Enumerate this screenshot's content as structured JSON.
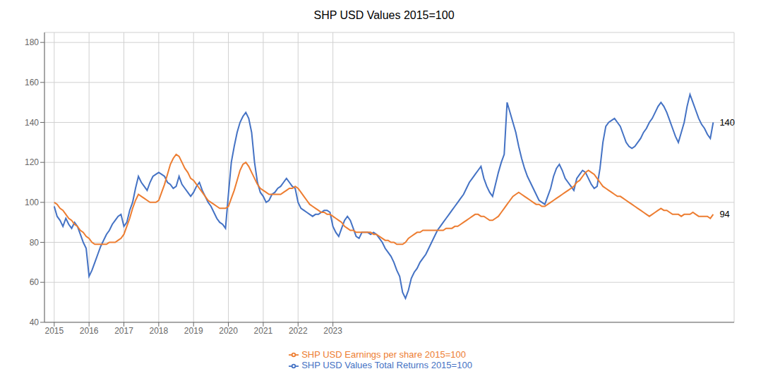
{
  "chart_data": {
    "type": "line",
    "title": "SHP USD Values 2015=100",
    "x": [
      2015,
      2015.0833333333333,
      2015.1666666666667,
      2015.25,
      2015.3333333333333,
      2015.4166666666667,
      2015.5,
      2015.5833333333333,
      2015.6666666666667,
      2015.75,
      2015.8333333333333,
      2015.9166666666667,
      2016,
      2016.0833333333333,
      2016.1666666666667,
      2016.25,
      2016.3333333333333,
      2016.4166666666667,
      2016.5,
      2016.5833333333333,
      2016.6666666666667,
      2016.75,
      2016.8333333333333,
      2016.9166666666667,
      2017,
      2017.0833333333333,
      2017.1666666666667,
      2017.25,
      2017.3333333333333,
      2017.4166666666667,
      2017.5,
      2017.5833333333333,
      2017.6666666666667,
      2017.75,
      2017.8333333333333,
      2017.9166666666667,
      2018,
      2018.0833333333333,
      2018.1666666666667,
      2018.25,
      2018.3333333333333,
      2018.4166666666667,
      2018.5,
      2018.5833333333333,
      2018.6666666666667,
      2018.75,
      2018.8333333333333,
      2018.9166666666667,
      2019,
      2019.0833333333333,
      2019.1666666666667,
      2019.25,
      2019.3333333333333,
      2019.4166666666667,
      2019.5,
      2019.5833333333333,
      2019.6666666666667,
      2019.75,
      2019.8333333333333,
      2019.9166666666667,
      2020,
      2020.0833333333333,
      2020.1666666666667,
      2020.25,
      2020.3333333333333,
      2020.4166666666667,
      2020.5,
      2020.5833333333333,
      2020.6666666666667,
      2020.75,
      2020.8333333333333,
      2020.9166666666667,
      2021,
      2021.0833333333333,
      2021.1666666666667,
      2021.25,
      2021.3333333333333,
      2021.4166666666667,
      2021.5,
      2021.5833333333333,
      2021.6666666666667,
      2021.75,
      2021.8333333333333,
      2021.9166666666667,
      2022,
      2022.0833333333333,
      2022.1666666666667,
      2022.25,
      2022.3333333333333,
      2022.4166666666667,
      2022.5,
      2022.5833333333333,
      2022.6666666666667,
      2022.75,
      2022.8333333333333,
      2022.9166666666667,
      2023,
      2023.0833333333333,
      2023.1666666666667,
      2023.25,
      2023.3333333333333,
      2023.4166666666667,
      2023.5,
      2023.5833333333333,
      2023.6666666666667,
      2023.75,
      2023.8333333333333,
      2023.9166666666667,
      2024,
      2024.0833333333333,
      2024.1666666666667,
      2024.25,
      2024.3333333333333,
      2024.4166666666667,
      2024.5,
      2024.5833333333333,
      2024.6666666666667,
      2024.75,
      2024.8333333333333,
      2024.9166666666667,
      2025,
      2025.0833333333333,
      2025.1666666666667,
      2025.25,
      2025.3333333333333,
      2025.4166666666667,
      2025.5,
      2025.5833333333333,
      2025.6666666666667,
      2025.75,
      2025.8333333333333,
      2025.9166666666667,
      2026,
      2026.0833333333333,
      2026.1666666666667,
      2026.25,
      2026.3333333333333,
      2026.4166666666667,
      2026.5,
      2026.5833333333333,
      2026.6666666666667,
      2026.75,
      2026.8333333333333,
      2026.9166666666667,
      2027,
      2027.0833333333333,
      2027.1666666666667,
      2027.25,
      2027.3333333333333,
      2027.4166666666667,
      2027.5,
      2027.5833333333333,
      2027.6666666666667,
      2027.75,
      2027.8333333333333,
      2027.9166666666667,
      2028,
      2028.0833333333333,
      2028.1666666666667,
      2028.25,
      2028.3333333333333,
      2028.4166666666667,
      2028.5,
      2028.5833333333333,
      2028.6666666666667,
      2028.75,
      2028.8333333333333,
      2028.9166666666667,
      2029,
      2029.0833333333333,
      2029.1666666666667,
      2029.25,
      2029.3333333333333,
      2029.4166666666667,
      2029.5,
      2029.5833333333333,
      2029.6666666666667,
      2029.75,
      2029.8333333333333,
      2029.9166666666667,
      2030,
      2030.0833333333333,
      2030.1666666666667,
      2030.25,
      2030.3333333333333,
      2030.4166666666667,
      2030.5,
      2030.5833333333333,
      2030.6666666666667,
      2030.75,
      2030.8333333333333,
      2030.9166666666667,
      2031,
      2031.0833333333333,
      2031.1666666666667,
      2031.25,
      2031.3333333333333,
      2031.4166666666667,
      2031.5,
      2031.5833333333333,
      2031.6666666666667,
      2031.75,
      2031.8333333333333,
      2031.9166666666667,
      2032,
      2032.0833333333333,
      2032.1666666666667,
      2032.25,
      2032.3333333333333,
      2032.4166666666667,
      2032.5,
      2032.5833333333333,
      2032.6666666666667,
      2032.75,
      2032.8333333333333,
      2032.9166666666667,
      2033,
      2033.0833333333333,
      2033.1666666666667,
      2033.25,
      2033.3333333333333,
      2033.4166666666667,
      2033.5,
      2033.5833333333333,
      2033.6666666666667,
      2033.75,
      2033.8333333333333,
      2033.9166666666667
    ],
    "series": [
      {
        "name": "SHP USD Values Total Returns 2015=100",
        "color": "#4472C4",
        "values": [
          98,
          93,
          91,
          88,
          92,
          89,
          87,
          90,
          88,
          84,
          80,
          77,
          63,
          66,
          70,
          74,
          78,
          81,
          84,
          86,
          89,
          91,
          93,
          94,
          88,
          90,
          96,
          100,
          107,
          113,
          110,
          108,
          106,
          110,
          113,
          114,
          115,
          114,
          113,
          110,
          109,
          107,
          108,
          113,
          109,
          107,
          105,
          103,
          105,
          108,
          110,
          106,
          103,
          100,
          98,
          95,
          92,
          90,
          89,
          87,
          104,
          120,
          128,
          135,
          140,
          143,
          145,
          142,
          135,
          120,
          110,
          105,
          103,
          100,
          101,
          104,
          105,
          107,
          108,
          110,
          112,
          110,
          108,
          107,
          100,
          97,
          96,
          95,
          94,
          93,
          94,
          94,
          95,
          96,
          96,
          95,
          88,
          85,
          83,
          87,
          91,
          93,
          91,
          87,
          83,
          82,
          85,
          85,
          85,
          84,
          85,
          84,
          82,
          80,
          77,
          75,
          73,
          70,
          66,
          63,
          55,
          52,
          56,
          62,
          65,
          67,
          70,
          72,
          74,
          77,
          80,
          83,
          86,
          88,
          90,
          92,
          94,
          96,
          98,
          100,
          102,
          104,
          107,
          110,
          112,
          114,
          116,
          118,
          112,
          108,
          105,
          103,
          109,
          115,
          120,
          124,
          150,
          145,
          140,
          135,
          128,
          122,
          117,
          113,
          110,
          107,
          104,
          101,
          100,
          99,
          103,
          107,
          113,
          117,
          119,
          116,
          112,
          110,
          108,
          106,
          112,
          114,
          116,
          115,
          112,
          109,
          107,
          108,
          117,
          130,
          138,
          140,
          141,
          142,
          140,
          138,
          134,
          130,
          128,
          127,
          128,
          130,
          132,
          135,
          137,
          140,
          142,
          145,
          148,
          150,
          148,
          145,
          141,
          137,
          133,
          130,
          135,
          140,
          148,
          154,
          150,
          146,
          142,
          139,
          137,
          134,
          132,
          140
        ]
      },
      {
        "name": "SHP USD Earnings per share 2015=100",
        "color": "#ED7D31",
        "values": [
          100,
          99,
          97,
          96,
          94,
          92,
          91,
          89,
          88,
          86,
          85,
          83,
          82,
          80,
          79,
          79,
          79,
          79,
          79,
          80,
          80,
          80,
          81,
          82,
          84,
          88,
          92,
          97,
          101,
          104,
          103,
          102,
          101,
          100,
          100,
          100,
          101,
          105,
          109,
          114,
          119,
          122,
          124,
          123,
          120,
          117,
          115,
          112,
          111,
          109,
          107,
          105,
          103,
          101,
          100,
          99,
          98,
          97,
          97,
          97,
          98,
          102,
          106,
          111,
          116,
          119,
          120,
          118,
          115,
          112,
          109,
          107,
          106,
          105,
          104,
          104,
          104,
          104,
          104,
          105,
          106,
          107,
          107,
          108,
          107,
          105,
          103,
          101,
          99,
          98,
          97,
          96,
          95,
          95,
          94,
          94,
          93,
          92,
          91,
          90,
          88,
          87,
          86,
          86,
          85,
          85,
          85,
          85,
          85,
          85,
          84,
          84,
          83,
          82,
          81,
          81,
          80,
          80,
          79,
          79,
          79,
          80,
          82,
          83,
          84,
          85,
          85,
          86,
          86,
          86,
          86,
          86,
          86,
          86,
          86,
          87,
          87,
          87,
          88,
          88,
          89,
          90,
          91,
          92,
          93,
          94,
          94,
          93,
          93,
          92,
          91,
          91,
          92,
          93,
          95,
          97,
          99,
          101,
          103,
          104,
          105,
          104,
          103,
          102,
          101,
          100,
          99,
          99,
          98,
          98,
          99,
          100,
          101,
          102,
          103,
          104,
          105,
          106,
          107,
          108,
          110,
          111,
          113,
          115,
          116,
          115,
          114,
          112,
          110,
          108,
          107,
          106,
          105,
          104,
          103,
          103,
          102,
          101,
          100,
          99,
          98,
          97,
          96,
          95,
          94,
          93,
          94,
          95,
          96,
          97,
          96,
          96,
          95,
          94,
          94,
          94,
          93,
          94,
          94,
          94,
          95,
          94,
          93,
          93,
          93,
          93,
          92,
          94
        ]
      }
    ],
    "annotations": [
      {
        "text": "140",
        "y": 140
      },
      {
        "text": "94",
        "y": 94
      }
    ],
    "xlim": [
      2014.72,
      2034.5166666666667
    ],
    "xticks": [
      2015,
      2016,
      2017,
      2018,
      2019,
      2020,
      2021,
      2022,
      2023
    ],
    "ylim": [
      40,
      185
    ],
    "yticks": [
      40,
      60,
      80,
      100,
      120,
      140,
      160,
      180
    ],
    "grid": true,
    "legend": "bottom"
  }
}
